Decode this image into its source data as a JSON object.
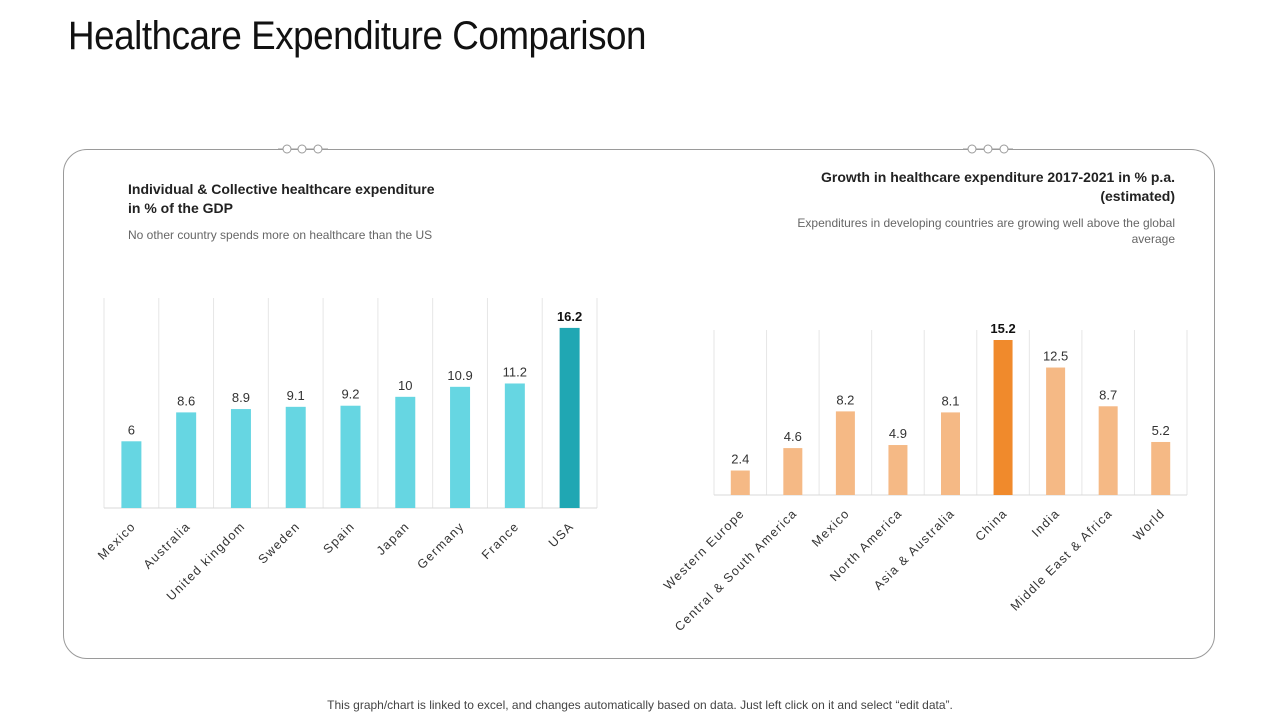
{
  "title": "Healthcare Expenditure Comparison",
  "footer": "This graph/chart is linked to excel, and changes automatically based on data. Just left click on it and select “edit data”.",
  "colors": {
    "left_bar": "#66D6E2",
    "left_highlight": "#20A7B3",
    "right_bar": "#F5B985",
    "right_highlight": "#F08A2C",
    "grid": "#e6e6e6",
    "frame": "#9a9a9a"
  },
  "left_panel": {
    "heading_line1": "Individual & Collective healthcare expenditure",
    "heading_line2": "in % of the GDP",
    "subtitle": "No other country spends more on healthcare than the US"
  },
  "right_panel": {
    "heading_line1": "Growth in healthcare expenditure 2017-2021 in % p.a.",
    "heading_line2": "(estimated)",
    "subtitle": "Expenditures in developing countries are growing well above the global average"
  },
  "chart_data": [
    {
      "type": "bar",
      "title": "Individual & Collective healthcare expenditure in % of the GDP",
      "categories": [
        "Mexico",
        "Australia",
        "United kingdom",
        "Sweden",
        "Spain",
        "Japan",
        "Germany",
        "France",
        "USA"
      ],
      "values": [
        6,
        8.6,
        8.9,
        9.1,
        9.2,
        10,
        10.9,
        11.2,
        16.2
      ],
      "value_labels": [
        "6",
        "8.6",
        "8.9",
        "9.1",
        "9.2",
        "10",
        "10.9",
        "11.2",
        "16.2"
      ],
      "highlight_index": 8,
      "xlabel": "",
      "ylabel": "",
      "ylim": [
        0,
        17
      ]
    },
    {
      "type": "bar",
      "title": "Growth in healthcare expenditure 2017-2021 in % p.a. (estimated)",
      "categories": [
        "Western Europe",
        "Central & South America",
        "Mexico",
        "North America",
        "Asia & Australia",
        "China",
        "India",
        "Middle East & Africa",
        "World"
      ],
      "values": [
        2.4,
        4.6,
        8.2,
        4.9,
        8.1,
        15.2,
        12.5,
        8.7,
        5.2
      ],
      "value_labels": [
        "2.4",
        "4.6",
        "8.2",
        "4.9",
        "8.1",
        "15.2",
        "12.5",
        "8.7",
        "5.2"
      ],
      "highlight_index": 5,
      "xlabel": "",
      "ylabel": "",
      "ylim": [
        0,
        15.2
      ]
    }
  ]
}
